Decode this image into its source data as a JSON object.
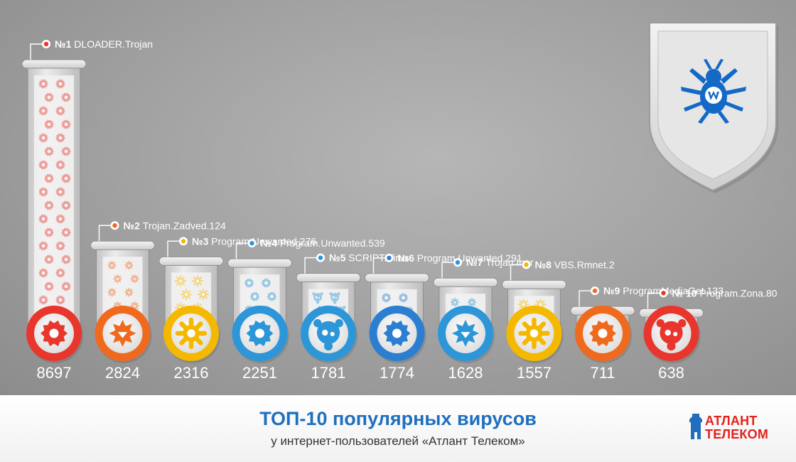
{
  "chart_data": {
    "type": "bar",
    "title": "ТОП-10 популярных вирусов",
    "subtitle": "у интернет-пользователей «Атлант Телеком»",
    "categories": [
      "№1 DLOADER.Trojan",
      "№2 Trojan.Zadved.124",
      "№3 Program.Unwanted.276",
      "№4 Program.Unwanted.539",
      "№5 SCRIPT.Virus",
      "№6 Program.Unwanted.291",
      "№7 Trojan.Inor",
      "№8 VBS.Rmnet.2",
      "№9 ProgramMediaGet.133",
      "№ 10 Program.Zona.80"
    ],
    "values": [
      8697,
      2824,
      2316,
      2251,
      1781,
      1774,
      1628,
      1557,
      711,
      638
    ],
    "colors": [
      "#e8362c",
      "#f06a1e",
      "#f5b800",
      "#2c96d8",
      "#2c96d8",
      "#2c7fd0",
      "#2c96d8",
      "#f5b800",
      "#f06a1e",
      "#e8362c"
    ],
    "icons": [
      "gear-bug-icon",
      "spiky-bug-icon",
      "sun-bug-icon",
      "gear-bug-icon",
      "blob-virus-icon",
      "gear-bug-icon",
      "spiky-bug-icon",
      "sun-bug-icon",
      "gear-bug-icon",
      "blob-virus-icon"
    ],
    "xlabel": "",
    "ylabel": "",
    "ylim": [
      0,
      8697
    ],
    "grid": false,
    "legend": "none"
  },
  "logos": {
    "drweb": "drweb-shield-logo",
    "brand_line1": "АТЛАНТ",
    "brand_line2": "ТЕЛЕКОМ"
  }
}
